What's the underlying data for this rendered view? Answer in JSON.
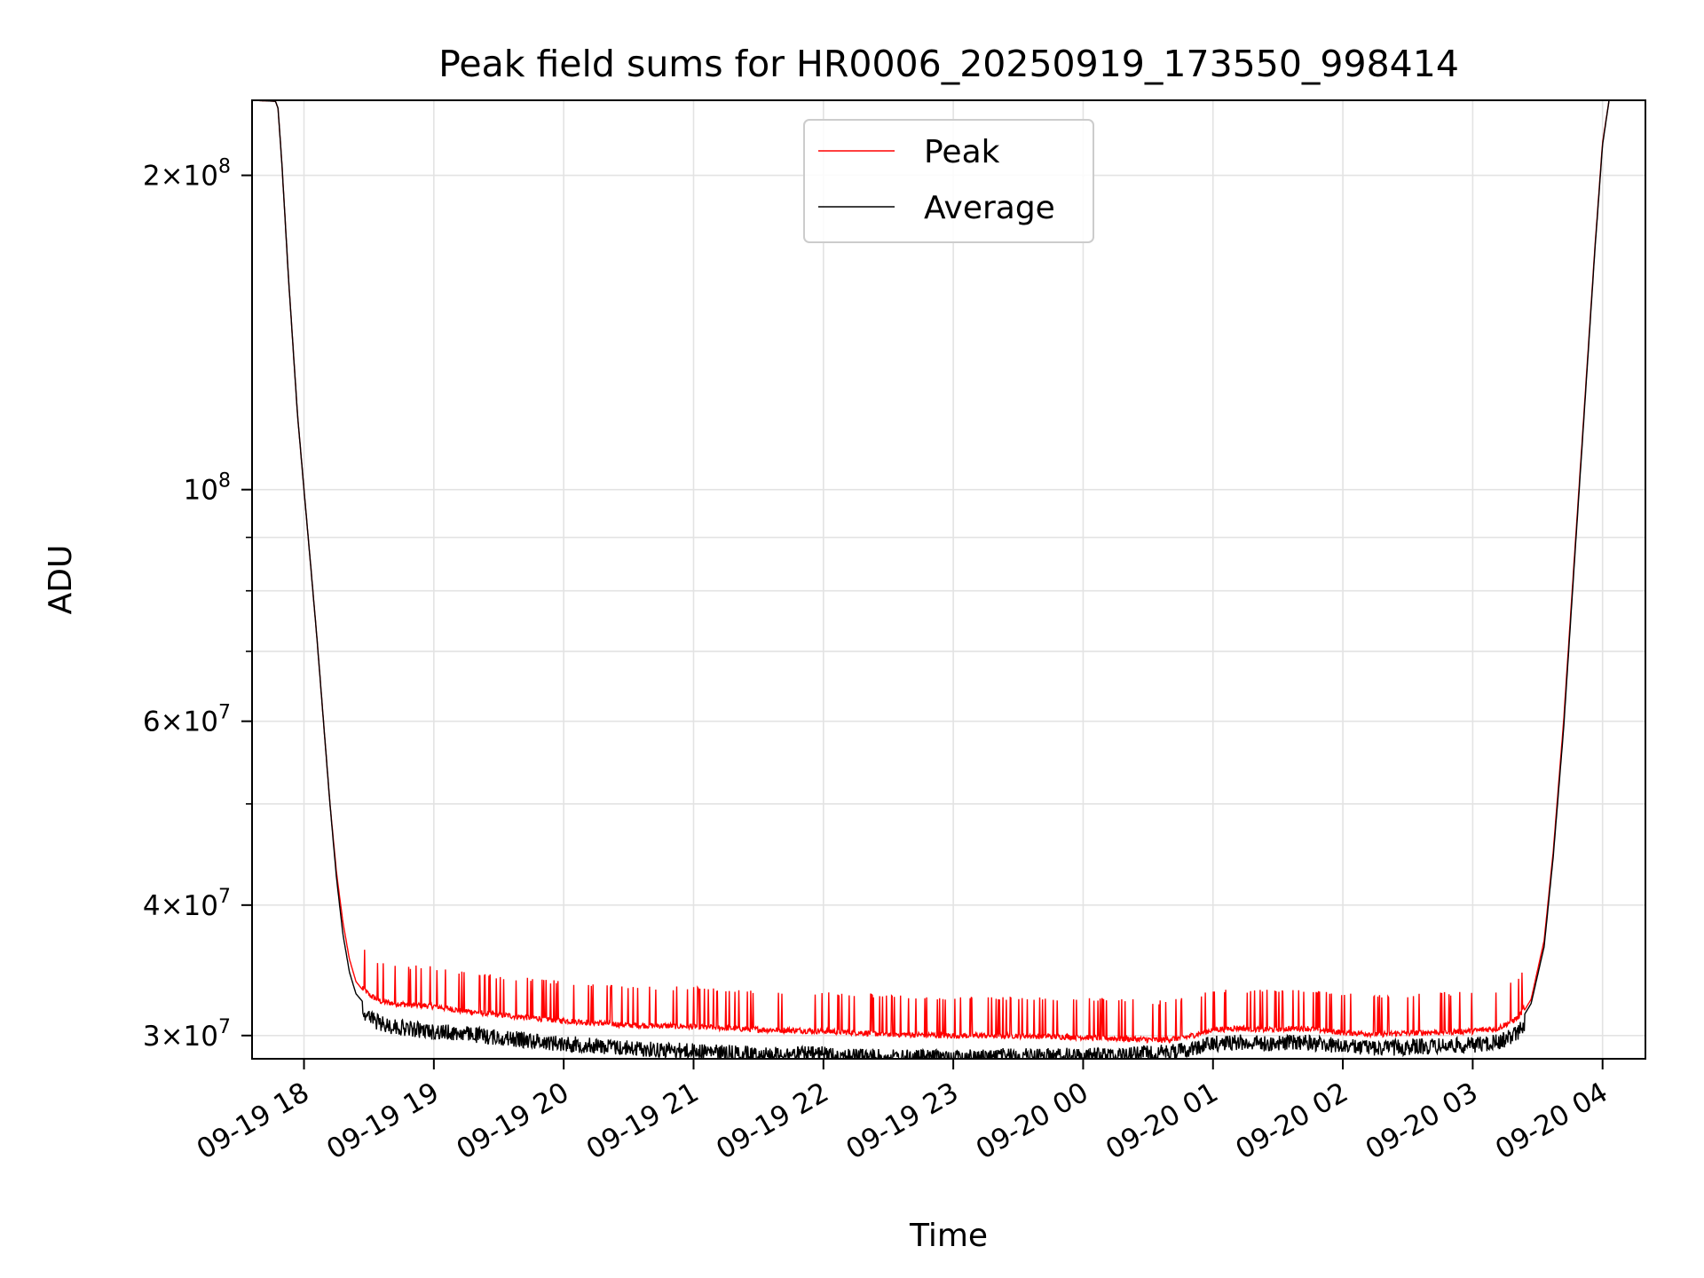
{
  "chart_data": {
    "type": "line",
    "title": "Peak field sums for HR0006_20250919_173550_998414",
    "xlabel": "Time",
    "ylabel": "ADU",
    "yscale": "log",
    "ylim": [
      28500000,
      236000000
    ],
    "xlim_hours_since_2025_09_19_00": [
      17.6,
      28.33
    ],
    "grid": true,
    "legend_position": "upper-center",
    "x_ticks": [
      {
        "h": 18,
        "label": "09-19 18"
      },
      {
        "h": 19,
        "label": "09-19 19"
      },
      {
        "h": 20,
        "label": "09-19 20"
      },
      {
        "h": 21,
        "label": "09-19 21"
      },
      {
        "h": 22,
        "label": "09-19 22"
      },
      {
        "h": 23,
        "label": "09-19 23"
      },
      {
        "h": 24,
        "label": "09-20 00"
      },
      {
        "h": 25,
        "label": "09-20 01"
      },
      {
        "h": 26,
        "label": "09-20 02"
      },
      {
        "h": 27,
        "label": "09-20 03"
      },
      {
        "h": 28,
        "label": "09-20 04"
      }
    ],
    "y_major_ticks": [
      {
        "v": 30000000,
        "mant": "3",
        "exp": "7"
      },
      {
        "v": 40000000,
        "mant": "4",
        "exp": "7"
      },
      {
        "v": 60000000,
        "mant": "6",
        "exp": "7"
      },
      {
        "v": 100000000,
        "mant": "",
        "exp": "8"
      },
      {
        "v": 200000000,
        "mant": "2",
        "exp": "8"
      }
    ],
    "y_minor_ticks": [
      50000000,
      70000000,
      80000000,
      90000000
    ],
    "series": [
      {
        "name": "Peak",
        "color": "#ff0000",
        "points": [
          [
            17.6,
            236000000
          ],
          [
            17.78,
            235500000
          ],
          [
            17.8,
            232000000
          ],
          [
            17.83,
            205000000
          ],
          [
            17.88,
            160000000
          ],
          [
            17.95,
            118000000
          ],
          [
            18.0,
            100000000
          ],
          [
            18.05,
            85000000
          ],
          [
            18.1,
            72000000
          ],
          [
            18.15,
            60000000
          ],
          [
            18.2,
            50000000
          ],
          [
            18.25,
            43000000
          ],
          [
            18.3,
            38500000
          ],
          [
            18.35,
            35500000
          ],
          [
            18.4,
            33800000
          ],
          [
            18.5,
            32600000
          ],
          [
            18.6,
            32100000
          ],
          [
            18.8,
            31900000
          ],
          [
            19.0,
            31800000
          ],
          [
            19.2,
            31500000
          ],
          [
            19.5,
            31200000
          ],
          [
            20.0,
            30800000
          ],
          [
            20.5,
            30500000
          ],
          [
            21.0,
            30400000
          ],
          [
            21.5,
            30200000
          ],
          [
            22.0,
            30100000
          ],
          [
            22.5,
            29900000
          ],
          [
            23.0,
            29800000
          ],
          [
            23.5,
            29800000
          ],
          [
            24.0,
            29700000
          ],
          [
            24.3,
            29600000
          ],
          [
            24.6,
            29500000
          ],
          [
            24.8,
            29700000
          ],
          [
            25.0,
            30200000
          ],
          [
            25.2,
            30300000
          ],
          [
            25.4,
            30200000
          ],
          [
            25.7,
            30300000
          ],
          [
            26.0,
            30000000
          ],
          [
            26.3,
            29900000
          ],
          [
            26.6,
            30000000
          ],
          [
            27.0,
            30100000
          ],
          [
            27.2,
            30300000
          ],
          [
            27.35,
            31000000
          ],
          [
            27.45,
            32500000
          ],
          [
            27.55,
            37000000
          ],
          [
            27.62,
            45000000
          ],
          [
            27.7,
            60000000
          ],
          [
            27.78,
            85000000
          ],
          [
            27.86,
            120000000
          ],
          [
            27.94,
            170000000
          ],
          [
            28.0,
            215000000
          ],
          [
            28.05,
            236000000
          ]
        ]
      },
      {
        "name": "Average",
        "color": "#000000",
        "points": [
          [
            17.6,
            236000000
          ],
          [
            17.78,
            235500000
          ],
          [
            17.8,
            232000000
          ],
          [
            17.83,
            205000000
          ],
          [
            17.88,
            160000000
          ],
          [
            17.95,
            118000000
          ],
          [
            18.0,
            100000000
          ],
          [
            18.05,
            85000000
          ],
          [
            18.1,
            72000000
          ],
          [
            18.15,
            60000000
          ],
          [
            18.2,
            50000000
          ],
          [
            18.25,
            42500000
          ],
          [
            18.3,
            37500000
          ],
          [
            18.35,
            34500000
          ],
          [
            18.4,
            32900000
          ],
          [
            18.5,
            31800000
          ],
          [
            18.6,
            31300000
          ],
          [
            18.8,
            31000000
          ],
          [
            19.0,
            30800000
          ],
          [
            19.2,
            30700000
          ],
          [
            19.5,
            30400000
          ],
          [
            20.0,
            30000000
          ],
          [
            20.5,
            29700000
          ],
          [
            21.0,
            29500000
          ],
          [
            21.5,
            29300000
          ],
          [
            22.0,
            29300000
          ],
          [
            22.5,
            29100000
          ],
          [
            23.0,
            29100000
          ],
          [
            23.5,
            29200000
          ],
          [
            24.0,
            29200000
          ],
          [
            24.3,
            29300000
          ],
          [
            24.6,
            29400000
          ],
          [
            24.8,
            29600000
          ],
          [
            25.0,
            30000000
          ],
          [
            25.2,
            30100000
          ],
          [
            25.4,
            30000000
          ],
          [
            25.7,
            30100000
          ],
          [
            26.0,
            29800000
          ],
          [
            26.3,
            29700000
          ],
          [
            26.6,
            29800000
          ],
          [
            27.0,
            29900000
          ],
          [
            27.2,
            30100000
          ],
          [
            27.35,
            30700000
          ],
          [
            27.45,
            32200000
          ],
          [
            27.55,
            36500000
          ],
          [
            27.62,
            44500000
          ],
          [
            27.7,
            59000000
          ],
          [
            27.78,
            84000000
          ],
          [
            27.86,
            119000000
          ],
          [
            27.94,
            169000000
          ],
          [
            28.0,
            214000000
          ],
          [
            28.05,
            236000000
          ]
        ]
      }
    ]
  }
}
